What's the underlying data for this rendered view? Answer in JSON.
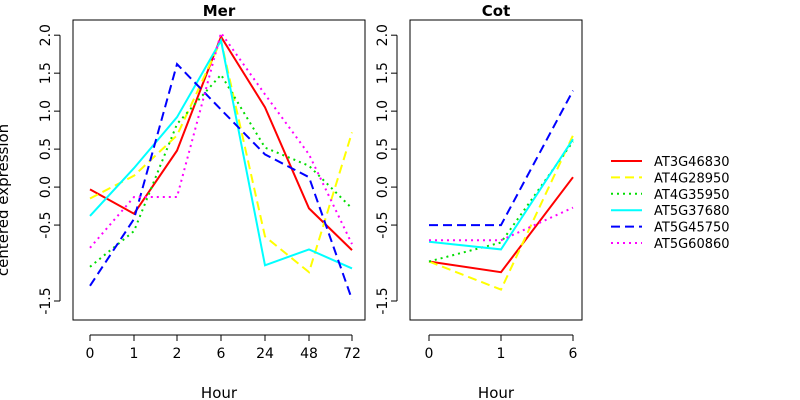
{
  "chart_data": {
    "type": "line",
    "ylabel": "centered expression",
    "legend_position": "right",
    "series": [
      {
        "name": "AT3G46830",
        "color": "#ff0000",
        "dash": "solid"
      },
      {
        "name": "AT4G28950",
        "color": "#ffff00",
        "dash": "dashed"
      },
      {
        "name": "AT4G35950",
        "color": "#00dd00",
        "dash": "dotted"
      },
      {
        "name": "AT5G37680",
        "color": "#00ffff",
        "dash": "solid"
      },
      {
        "name": "AT5G45750",
        "color": "#0000ff",
        "dash": "dashed"
      },
      {
        "name": "AT5G60860",
        "color": "#ff00ff",
        "dash": "dotted"
      }
    ],
    "panels": [
      {
        "title": "Mer",
        "xlabel": "Hour",
        "categories": [
          "0",
          "1",
          "2",
          "6",
          "24",
          "48",
          "72"
        ],
        "yticks": [
          -1.5,
          -0.5,
          0.0,
          0.5,
          1.0,
          1.5,
          2.0
        ],
        "ylim": [
          -1.75,
          2.2
        ],
        "values": [
          [
            -0.03,
            -0.35,
            0.48,
            1.98,
            1.05,
            -0.28,
            -0.83
          ],
          [
            -0.15,
            0.15,
            0.68,
            1.93,
            -0.65,
            -1.12,
            0.72
          ],
          [
            -1.05,
            -0.58,
            0.83,
            1.48,
            0.52,
            0.28,
            -0.28
          ],
          [
            -0.38,
            0.25,
            0.92,
            1.93,
            -1.03,
            -0.82,
            -1.07
          ],
          [
            -1.3,
            -0.42,
            1.62,
            1.02,
            0.43,
            0.13,
            -1.48
          ],
          [
            -0.8,
            -0.13,
            -0.13,
            2.03,
            1.22,
            0.43,
            -0.75
          ]
        ]
      },
      {
        "title": "Cot",
        "xlabel": "Hour",
        "categories": [
          "0",
          "1",
          "6"
        ],
        "yticks": [
          -1.5,
          -0.5,
          0.0,
          0.5,
          1.0,
          1.5,
          2.0
        ],
        "ylim": [
          -1.75,
          2.2
        ],
        "values": [
          [
            -0.98,
            -1.12,
            0.13
          ],
          [
            -0.98,
            -1.35,
            0.68
          ],
          [
            -0.98,
            -0.73,
            0.6
          ],
          [
            -0.72,
            -0.82,
            0.63
          ],
          [
            -0.5,
            -0.5,
            1.27
          ],
          [
            -0.7,
            -0.7,
            -0.27
          ]
        ]
      }
    ]
  }
}
